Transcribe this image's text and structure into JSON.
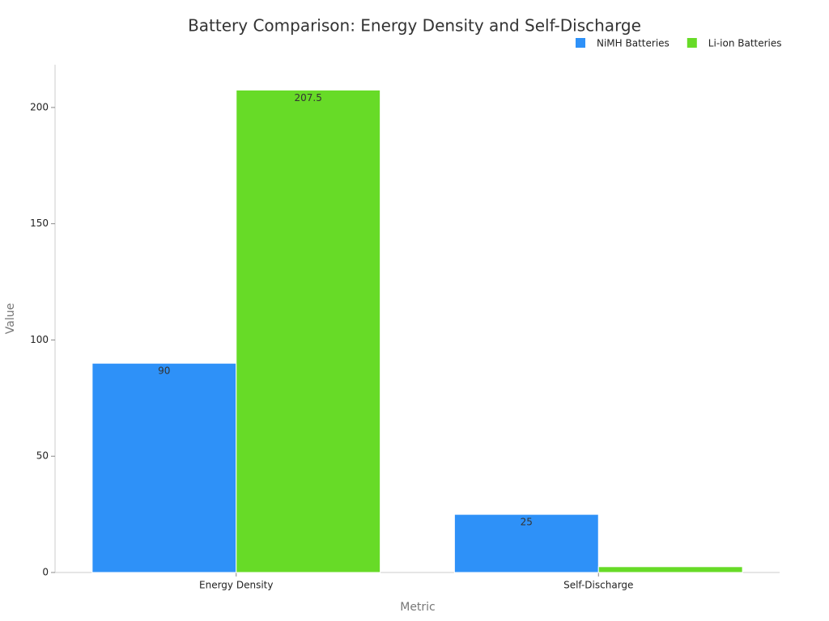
{
  "chart_data": {
    "type": "bar",
    "title": "Battery Comparison: Energy Density and Self-Discharge",
    "x_label": "Metric",
    "y_label": "Value",
    "categories": [
      "Energy Density",
      "Self-Discharge"
    ],
    "series": [
      {
        "name": "NiMH Batteries",
        "color": "#2e91f8",
        "values": [
          90,
          25
        ]
      },
      {
        "name": "Li-ion Batteries",
        "color": "#67db27",
        "values": [
          207.5,
          2.5
        ]
      }
    ],
    "ylim": [
      0,
      218.4
    ],
    "yticks": [
      0,
      50,
      100,
      150,
      200
    ],
    "grid": false,
    "legend": "top-right"
  }
}
